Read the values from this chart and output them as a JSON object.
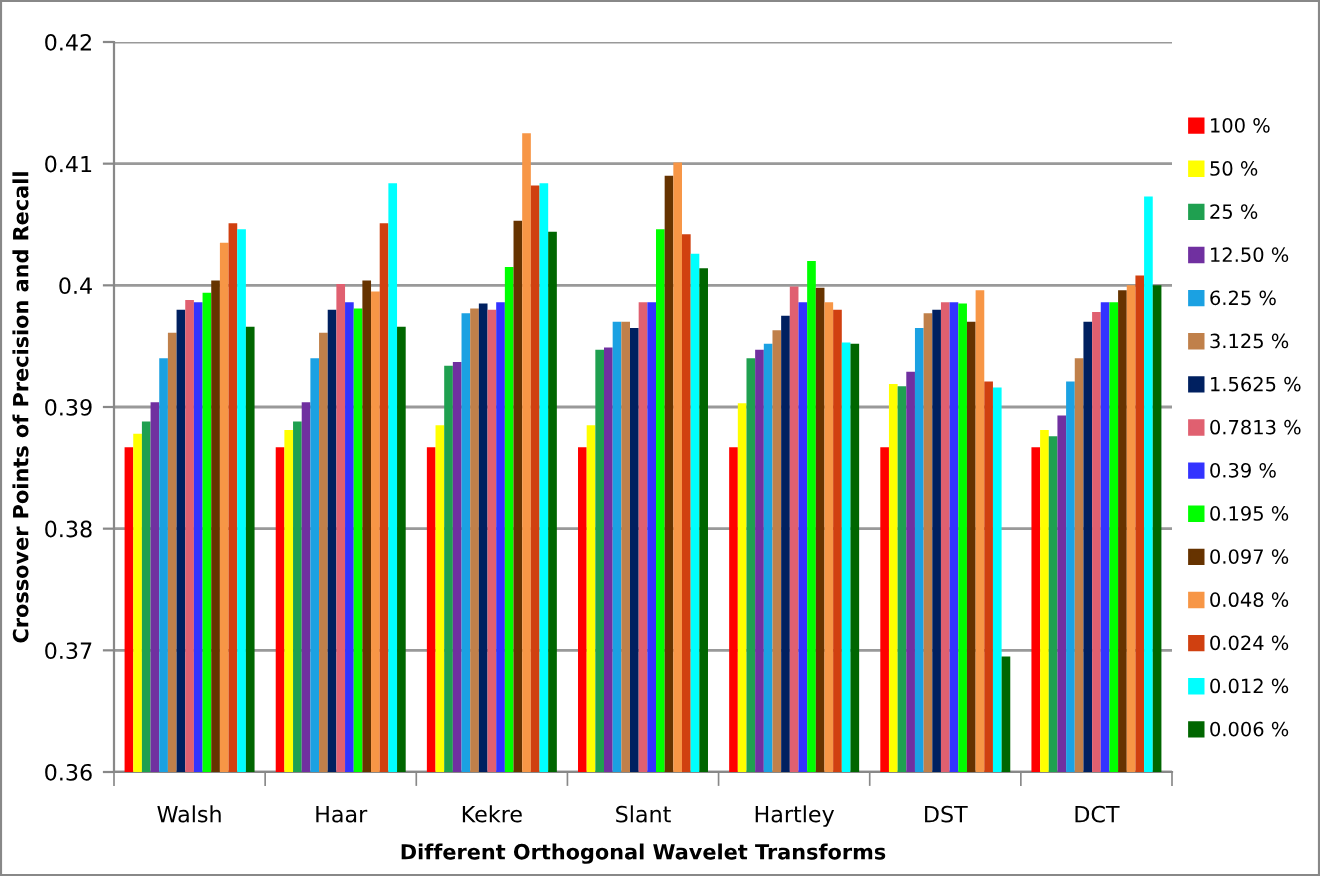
{
  "chart_data": {
    "type": "bar",
    "xlabel": "Different Orthogonal Wavelet Transforms",
    "ylabel": "Crossover Points of Precision and Recall",
    "categories": [
      "Walsh",
      "Haar",
      "Kekre",
      "Slant",
      "Hartley",
      "DST",
      "DCT"
    ],
    "ylim": [
      0.36,
      0.42
    ],
    "yticks": [
      0.36,
      0.37,
      0.38,
      0.39,
      0.4,
      0.41,
      0.42
    ],
    "grid": "y",
    "legend": "right",
    "series": [
      {
        "name": "100 %",
        "color": "#ff0000",
        "values": [
          0.3867,
          0.3867,
          0.3867,
          0.3867,
          0.3867,
          0.3867,
          0.3867
        ]
      },
      {
        "name": "50 %",
        "color": "#ffff00",
        "values": [
          0.3878,
          0.3881,
          0.3885,
          0.3885,
          0.3903,
          0.3919,
          0.3881
        ]
      },
      {
        "name": "25 %",
        "color": "#1fa050",
        "values": [
          0.3888,
          0.3888,
          0.3934,
          0.3947,
          0.394,
          0.3917,
          0.3876
        ]
      },
      {
        "name": "12.50 %",
        "color": "#7030a0",
        "values": [
          0.3904,
          0.3904,
          0.3937,
          0.3949,
          0.3947,
          0.3929,
          0.3893
        ]
      },
      {
        "name": "6.25 %",
        "color": "#1ba1e2",
        "values": [
          0.394,
          0.394,
          0.3977,
          0.397,
          0.3952,
          0.3965,
          0.3921
        ]
      },
      {
        "name": "3.125 %",
        "color": "#c0804a",
        "values": [
          0.3961,
          0.3961,
          0.3981,
          0.397,
          0.3963,
          0.3977,
          0.394
        ]
      },
      {
        "name": "1.5625 %",
        "color": "#002060",
        "values": [
          0.398,
          0.398,
          0.3985,
          0.3965,
          0.3975,
          0.398,
          0.397
        ]
      },
      {
        "name": "0.7813 %",
        "color": "#e06070",
        "values": [
          0.3988,
          0.4001,
          0.398,
          0.3986,
          0.3999,
          0.3986,
          0.3978
        ]
      },
      {
        "name": "0.39 %",
        "color": "#3333ff",
        "values": [
          0.3986,
          0.3986,
          0.3986,
          0.3986,
          0.3986,
          0.3986,
          0.3986
        ]
      },
      {
        "name": "0.195 %",
        "color": "#00ff00",
        "values": [
          0.3994,
          0.3981,
          0.4015,
          0.4046,
          0.402,
          0.3985,
          0.3986
        ]
      },
      {
        "name": "0.097 %",
        "color": "#663300",
        "values": [
          0.4004,
          0.4004,
          0.4053,
          0.409,
          0.3998,
          0.397,
          0.3996
        ]
      },
      {
        "name": "0.048 %",
        "color": "#f79646",
        "values": [
          0.4035,
          0.3995,
          0.4125,
          0.4101,
          0.3986,
          0.3996,
          0.4
        ]
      },
      {
        "name": "0.024 %",
        "color": "#d04010",
        "values": [
          0.4051,
          0.4051,
          0.4082,
          0.4042,
          0.398,
          0.3921,
          0.4008
        ]
      },
      {
        "name": "0.012 %",
        "color": "#00ffff",
        "values": [
          0.4046,
          0.4084,
          0.4084,
          0.4026,
          0.3953,
          0.3916,
          0.4073
        ]
      },
      {
        "name": "0.006 %",
        "color": "#006600",
        "values": [
          0.3966,
          0.3966,
          0.4044,
          0.4014,
          0.3952,
          0.3695,
          0.4
        ]
      }
    ]
  }
}
